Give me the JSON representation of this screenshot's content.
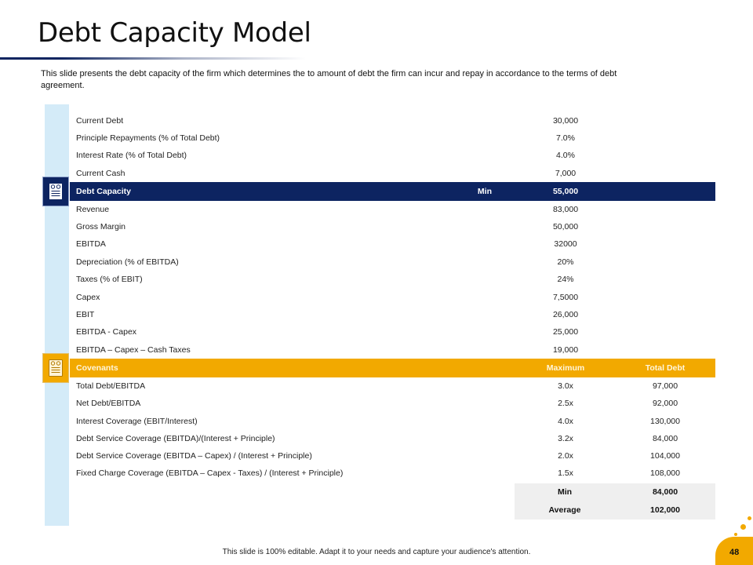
{
  "slide": {
    "title": "Debt Capacity Model",
    "description": "This slide presents the debt capacity of the firm which determines the to amount of debt the firm can incur and repay in accordance to the terms of debt agreement.",
    "footer": "This slide is 100% editable. Adapt it to your needs and capture your audience's attention.",
    "page_number": "48",
    "colors": {
      "navy": "#0d2461",
      "gold": "#f2a900",
      "light_blue": "#d4ebf8",
      "summary_gray": "#efefef"
    },
    "icons": {
      "debt_capacity": "document-icon",
      "covenants": "document-icon"
    }
  },
  "table": {
    "inputs": [
      {
        "label": "Current Debt",
        "value": "30,000"
      },
      {
        "label": "Principle Repayments (% of Total Debt)",
        "value": "7.0%"
      },
      {
        "label": "Interest Rate (% of Total Debt)",
        "value": "4.0%"
      },
      {
        "label": "Current Cash",
        "value": "7,000"
      }
    ],
    "debt_capacity_header": {
      "label": "Debt Capacity",
      "min_label": "Min",
      "value": "55,000"
    },
    "operating": [
      {
        "label": "Revenue",
        "value": "83,000"
      },
      {
        "label": "Gross Margin",
        "value": "50,000"
      },
      {
        "label": "EBITDA",
        "value": "32000"
      },
      {
        "label": "Depreciation (% of EBITDA)",
        "value": "20%"
      },
      {
        "label": "Taxes (% of EBIT)",
        "value": "24%"
      },
      {
        "label": "Capex",
        "value": "7,5000"
      },
      {
        "label": "EBIT",
        "value": "26,000"
      },
      {
        "label": "EBITDA - Capex",
        "value": "25,000"
      },
      {
        "label": "EBITDA – Capex – Cash Taxes",
        "value": "19,000"
      }
    ],
    "covenants_header": {
      "label": "Covenants",
      "maximum": "Maximum",
      "total_debt": "Total Debt"
    },
    "covenants": [
      {
        "label": "Total Debt/EBITDA",
        "maximum": "3.0x",
        "total_debt": "97,000"
      },
      {
        "label": "Net Debt/EBITDA",
        "maximum": "2.5x",
        "total_debt": "92,000"
      },
      {
        "label": "Interest Coverage (EBIT/Interest)",
        "maximum": "4.0x",
        "total_debt": "130,000"
      },
      {
        "label": "Debt Service Coverage (EBITDA)/(Interest + Principle)",
        "maximum": "3.2x",
        "total_debt": "84,000"
      },
      {
        "label": "Debt Service Coverage (EBITDA – Capex) / (Interest + Principle)",
        "maximum": "2.0x",
        "total_debt": "104,000"
      },
      {
        "label": "Fixed Charge Coverage (EBITDA – Capex - Taxes) / (Interest + Principle)",
        "maximum": "1.5x",
        "total_debt": "108,000"
      }
    ],
    "summary": [
      {
        "label": "Min",
        "value": "84,000"
      },
      {
        "label": "Average",
        "value": "102,000"
      }
    ]
  }
}
